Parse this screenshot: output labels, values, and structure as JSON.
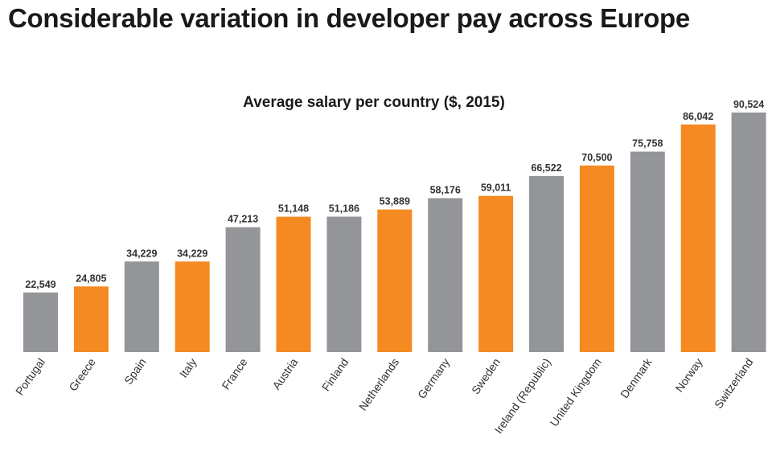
{
  "headline": "Considerable variation in developer pay across Europe",
  "chart_data": {
    "type": "bar",
    "title": "Average salary per country ($, 2015)",
    "xlabel": "",
    "ylabel": "",
    "ylim": [
      0,
      100000
    ],
    "grid": false,
    "categories": [
      "Portugal",
      "Greece",
      "Spain",
      "Italy",
      "France",
      "Austria",
      "Finland",
      "Netherlands",
      "Germany",
      "Sweden",
      "Ireland (Republic)",
      "United Kingdom",
      "Denmark",
      "Norway",
      "Switzerland"
    ],
    "values": [
      22549,
      24805,
      34229,
      34229,
      47213,
      51148,
      51186,
      53889,
      58176,
      59011,
      66522,
      70500,
      75758,
      86042,
      90524
    ],
    "value_labels": [
      "22,549",
      "24,805",
      "34,229",
      "34,229",
      "47,213",
      "51,148",
      "51,186",
      "53,889",
      "58,176",
      "59,011",
      "66,522",
      "70,500",
      "75,758",
      "86,042",
      "90,524"
    ],
    "bar_colors": [
      "#939598",
      "#f48a21",
      "#939598",
      "#f48a21",
      "#939598",
      "#f48a21",
      "#939598",
      "#f48a21",
      "#939598",
      "#f48a21",
      "#939598",
      "#f48a21",
      "#939598",
      "#f48a21",
      "#939598"
    ],
    "colors": {
      "gray": "#939598",
      "orange": "#f48a21"
    }
  }
}
